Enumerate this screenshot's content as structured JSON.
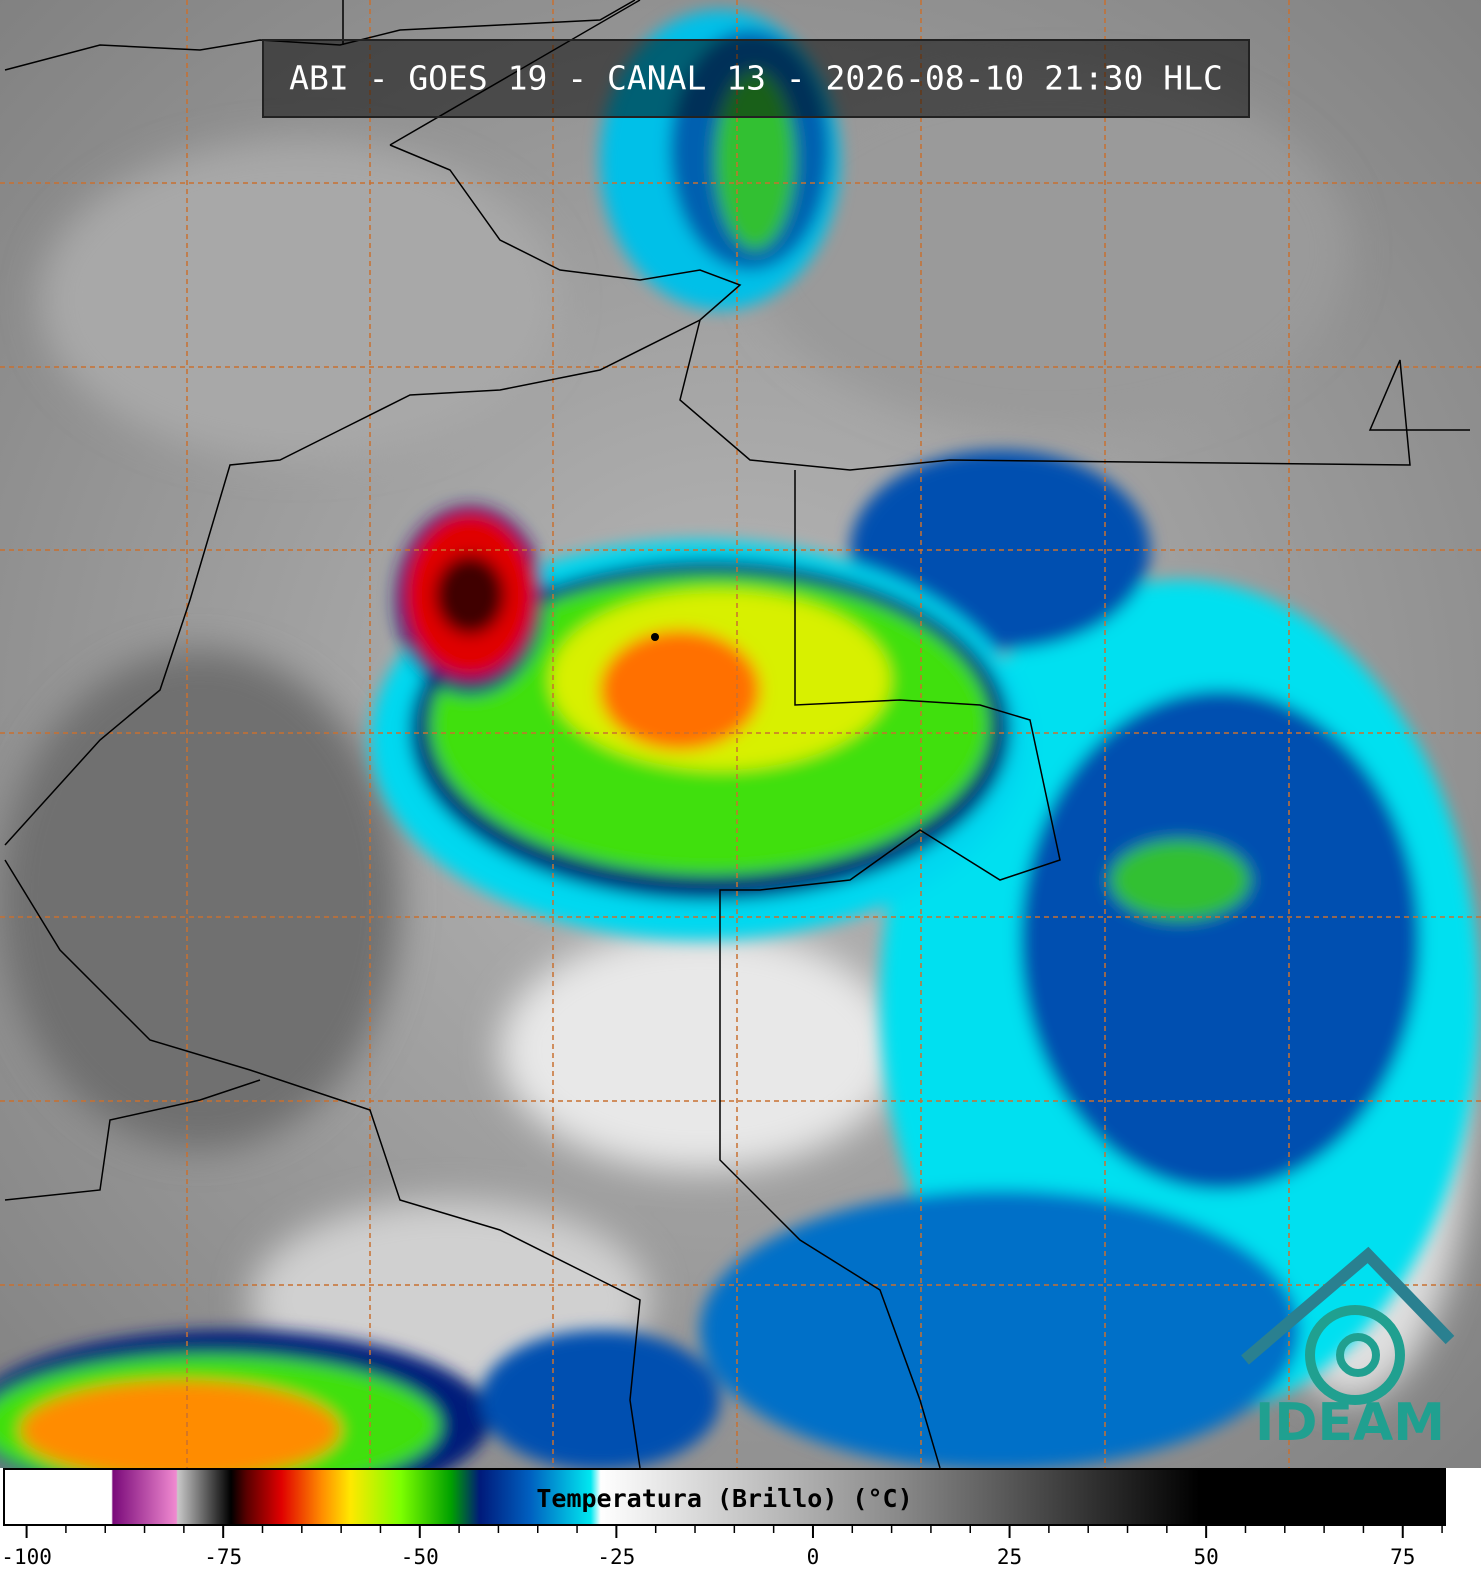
{
  "header": {
    "title": "ABI - GOES 19 - CANAL 13 - 2026-08-10 21:30 HLC"
  },
  "logo": {
    "text": "IDEAM"
  },
  "colorbar": {
    "label": "Temperatura (Brillo) (°C)",
    "xlim": [
      -103,
      80.5
    ],
    "xticks": [
      -100,
      -75,
      -50,
      -25,
      0,
      25,
      50,
      75
    ],
    "xminorticks": [
      -95,
      -90,
      -85,
      -80,
      -70,
      -65,
      -60,
      -55,
      -45,
      -40,
      -35,
      -30,
      -20,
      -15,
      -10,
      -5,
      5,
      10,
      15,
      20,
      30,
      35,
      40,
      45,
      55,
      60,
      65,
      70,
      80
    ]
  }
}
